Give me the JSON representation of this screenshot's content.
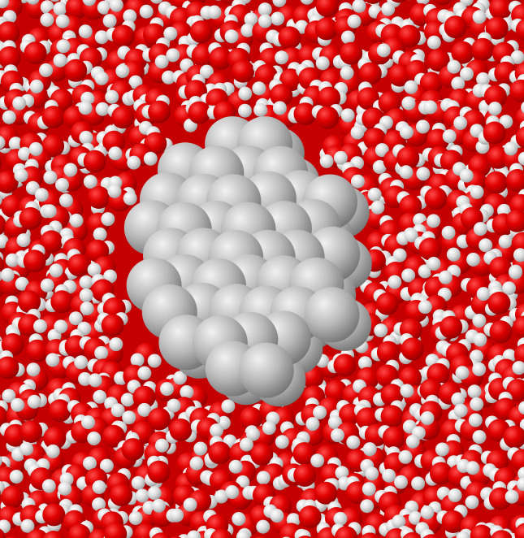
{
  "scene": {
    "subject": "water-molecules-surrounding-nanoparticle",
    "colors": {
      "background": "#c40000",
      "oxygen_highlight": "#ff4a4a",
      "oxygen_mid": "#e00000",
      "oxygen_shadow": "#8a0000",
      "hydrogen_highlight": "#ffffff",
      "hydrogen_mid": "#dcdcdc",
      "hydrogen_shadow": "#9a9a9a",
      "particle_highlight": "#f2f2f2",
      "particle_mid": "#b9b9b9",
      "particle_shadow": "#6e6e6e"
    }
  }
}
